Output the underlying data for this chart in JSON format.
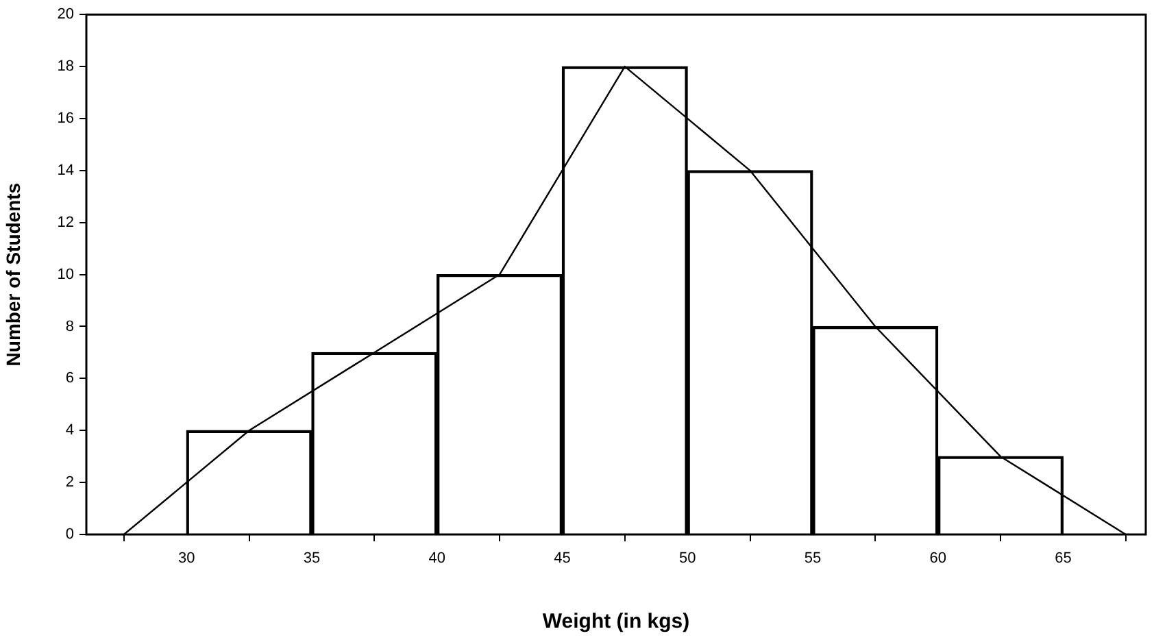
{
  "chart_data": {
    "type": "histogram",
    "xlabel": "Weight (in kgs)",
    "ylabel": "Number of Students",
    "bins": [
      30,
      35,
      40,
      45,
      50,
      55,
      60,
      65
    ],
    "values": [
      4,
      7,
      10,
      18,
      14,
      8,
      3
    ],
    "color": "#000000",
    "series": [
      {
        "type": "line",
        "color": "#000000",
        "x": [
          27.5,
          32.5,
          37.5,
          42.5,
          47.5,
          52.5,
          57.5,
          62.5,
          67.5
        ],
        "values": [
          0,
          4,
          7,
          10,
          18,
          14,
          8,
          3,
          0
        ]
      }
    ],
    "xlim": [
      26,
      68.3
    ],
    "xticks": [
      30,
      35,
      40,
      45,
      50,
      55,
      60,
      65
    ],
    "ylim": [
      0,
      20
    ],
    "yticks": [
      0,
      2,
      4,
      6,
      8,
      10,
      12,
      14,
      16,
      18,
      20
    ],
    "grid": false,
    "legend": false,
    "marker": "none",
    "line_style": "solid"
  }
}
